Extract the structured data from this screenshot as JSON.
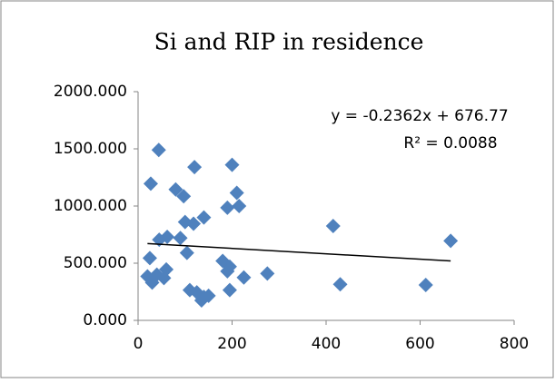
{
  "chart_data": {
    "type": "scatter",
    "title": "Si and RIP in residence",
    "series": [
      {
        "name": "Si and RIP",
        "color": "#4f81bd",
        "x": [
          44,
          27,
          120,
          200,
          210,
          80,
          97,
          215,
          190,
          140,
          100,
          118,
          415,
          665,
          45,
          62,
          90,
          104,
          25,
          180,
          195,
          190,
          275,
          60,
          20,
          40,
          55,
          30,
          225,
          430,
          612,
          110,
          125,
          195,
          150,
          135,
          140
        ],
        "values": [
          1490,
          1195,
          1340,
          1360,
          1115,
          1145,
          1085,
          1000,
          985,
          900,
          860,
          845,
          825,
          695,
          705,
          730,
          720,
          590,
          545,
          520,
          470,
          430,
          410,
          445,
          385,
          400,
          370,
          330,
          375,
          315,
          310,
          265,
          245,
          265,
          215,
          175,
          205
        ]
      }
    ],
    "trendline": {
      "slope": -0.2362,
      "intercept": 676.77,
      "color": "#000000",
      "equation": "y = -0.2362x + 676.77",
      "r2_label": "R² = 0.0088"
    },
    "xlim": [
      0,
      800
    ],
    "xticks": [
      0,
      200,
      400,
      600,
      800
    ],
    "ylim": [
      0,
      2000
    ],
    "yticks": [
      {
        "value": 0,
        "label": "0.000"
      },
      {
        "value": 500,
        "label": "500.000"
      },
      {
        "value": 1000,
        "label": "1000.000"
      },
      {
        "value": 1500,
        "label": "1500.000"
      },
      {
        "value": 2000,
        "label": "2000.000"
      }
    ],
    "grid": false
  }
}
